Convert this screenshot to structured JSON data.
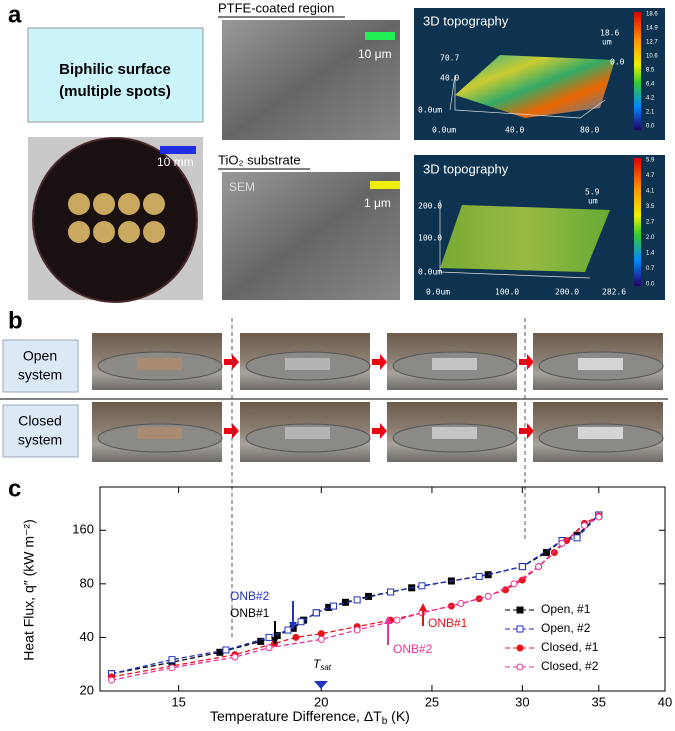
{
  "panel_a": {
    "label": "a",
    "box_line1": "Biphilic surface",
    "box_line2": "(multiple spots)",
    "photo_scale": "10 mm",
    "ptfe_title": "PTFE-coated region",
    "ptfe_scale": "10 μm",
    "tio2_title": "TiO₂ substrate",
    "sem_label": "SEM",
    "tio2_scale": "1 μm",
    "topo1": {
      "title": "3D topography",
      "z_top": "18.6",
      "z_unit": "um",
      "y_labels": [
        "70.7",
        "40.0",
        "0.0um"
      ],
      "x_labels": [
        "0.0um",
        "40.0",
        "80.0"
      ],
      "colorbar": [
        "18.6",
        "14.9",
        "12.7",
        "10.6",
        "8.5",
        "6.4",
        "4.2",
        "2.1",
        "0.0"
      ],
      "corner": "0.0"
    },
    "topo2": {
      "title": "3D topography",
      "z_top": "5.9",
      "z_unit": "um",
      "y_labels": [
        "200.0",
        "100.0",
        "0.0um"
      ],
      "x_labels": [
        "0.0um",
        "100.0",
        "200.0",
        "282.6"
      ],
      "colorbar": [
        "5.9",
        "4.7",
        "4.1",
        "3.5",
        "2.7",
        "2.0",
        "1.4",
        "0.7",
        "0.0"
      ]
    }
  },
  "panel_b": {
    "label": "b",
    "rows": [
      [
        "Open",
        "system"
      ],
      [
        "Closed",
        "system"
      ]
    ]
  },
  "panel_c": {
    "label": "c"
  },
  "chart_data": {
    "type": "line",
    "x_label": "Temperature Difference, ΔT",
    "x_label_sub": "b",
    "x_label_unit": " (K)",
    "y_label": "Heat Flux, q″ (kW m⁻²)",
    "log_x": true,
    "log_y": true,
    "xlim": [
      12.8,
      40
    ],
    "ylim": [
      20,
      280
    ],
    "xticks": [
      15,
      20,
      25,
      30,
      35,
      40
    ],
    "yticks": [
      20,
      40,
      80,
      160
    ],
    "legend": "lower right",
    "series": [
      {
        "name": "Open, #1",
        "color": "#000000",
        "marker": "square",
        "filled": true,
        "x": [
          13.1,
          14.8,
          16.3,
          17.7,
          18.3,
          18.9,
          19.3,
          19.8,
          20.3,
          21.0,
          22.0,
          23.0,
          24.0,
          26.0,
          28.0,
          30.0,
          31.5,
          32.5,
          33.5,
          35.0
        ],
        "values": [
          25,
          29,
          33,
          38,
          41,
          45,
          50,
          55,
          59,
          63,
          68,
          72,
          76,
          83,
          90,
          100,
          120,
          140,
          150,
          195
        ]
      },
      {
        "name": "Open, #2",
        "color": "#2233bb",
        "marker": "square",
        "filled": false,
        "x": [
          13.1,
          14.8,
          16.5,
          18.0,
          18.7,
          19.2,
          19.8,
          20.5,
          21.5,
          23.0,
          24.5,
          27.5,
          30.0,
          32.5,
          33.5,
          35.0
        ],
        "values": [
          25,
          30,
          34,
          40,
          44,
          49,
          55,
          60,
          65,
          72,
          78,
          88,
          100,
          140,
          145,
          195
        ]
      },
      {
        "name": "Closed, #1",
        "color": "#e8141c",
        "marker": "circle",
        "filled": true,
        "x": [
          13.1,
          16.8,
          18.2,
          19.0,
          20.0,
          21.5,
          23.0,
          24.5,
          26.0,
          27.5,
          29.0,
          30.0,
          31.0,
          32.0,
          32.8,
          34.0,
          35.0
        ],
        "values": [
          24,
          32,
          37,
          40,
          42,
          46,
          50,
          55,
          60,
          66,
          74,
          84,
          100,
          120,
          140,
          175,
          192
        ]
      },
      {
        "name": "Closed, #2",
        "color": "#ee3399",
        "marker": "circle",
        "filled": false,
        "x": [
          13.1,
          14.8,
          16.8,
          18.0,
          20.0,
          21.5,
          23.3,
          24.5,
          26.5,
          28.0,
          29.5,
          31.0,
          32.5,
          34.0,
          35.0
        ],
        "values": [
          23,
          27,
          31,
          35,
          39,
          44,
          50,
          55,
          62,
          68,
          80,
          100,
          135,
          170,
          190
        ]
      }
    ],
    "annotations": [
      {
        "text": "ONB#2",
        "color": "#2233bb"
      },
      {
        "text": "ONB#1",
        "color": "#000000"
      },
      {
        "text": "ONB#1",
        "color": "#e8141c"
      },
      {
        "text": "ONB#2",
        "color": "#ee3399"
      }
    ],
    "tsat_label": "T",
    "tsat_sub": "sat"
  }
}
